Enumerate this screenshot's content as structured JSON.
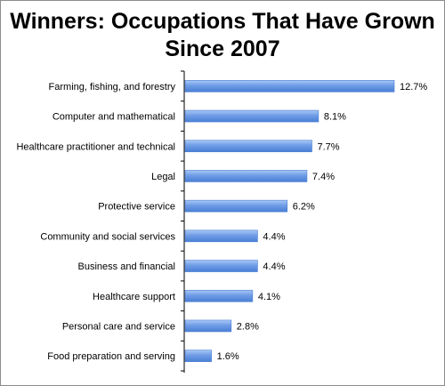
{
  "title_line1": "Winners: Occupations That Have Grown",
  "title_line2": "Since 2007",
  "chart_data": {
    "type": "bar",
    "orientation": "horizontal",
    "title": "Winners: Occupations That Have Grown Since 2007",
    "categories": [
      "Farming, fishing, and forestry",
      "Computer and mathematical",
      "Healthcare practitioner and technical",
      "Legal",
      "Protective service",
      "Community and social services",
      "Business and financial",
      "Healthcare support",
      "Personal care and service",
      "Food preparation and serving"
    ],
    "values": [
      12.7,
      8.1,
      7.7,
      7.4,
      6.2,
      4.4,
      4.4,
      4.1,
      2.8,
      1.6
    ],
    "value_labels": [
      "12.7%",
      "8.1%",
      "7.7%",
      "7.4%",
      "6.2%",
      "4.4%",
      "4.4%",
      "4.1%",
      "2.8%",
      "1.6%"
    ],
    "xlim": [
      0,
      12.7
    ],
    "grid": false,
    "legend": "none",
    "bar_color": "#6f9ce6"
  }
}
